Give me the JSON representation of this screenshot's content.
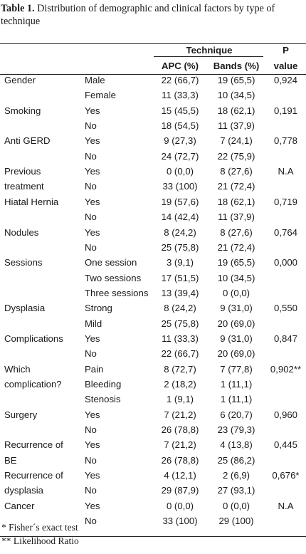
{
  "caption": {
    "label": "Table 1.",
    "text": " Distribution of demographic and clinical factors by type of technique"
  },
  "header": {
    "technique": "Technique",
    "apc": "APC (%)",
    "bands": "Bands (%)",
    "p_top": "P",
    "p_bottom": "value"
  },
  "rows": [
    {
      "factor": "Gender",
      "level": "Male",
      "apc": "22 (66,7)",
      "bands": "19 (65,5)",
      "p": "0,924"
    },
    {
      "factor": "",
      "level": "Female",
      "apc": "11 (33,3)",
      "bands": "10 (34,5)",
      "p": ""
    },
    {
      "factor": "Smoking",
      "level": "Yes",
      "apc": "15 (45,5)",
      "bands": "18 (62,1)",
      "p": "0,191"
    },
    {
      "factor": "",
      "level": "No",
      "apc": "18 (54,5)",
      "bands": "11 (37,9)",
      "p": ""
    },
    {
      "factor": "Anti GERD",
      "level": "Yes",
      "apc": "9 (27,3)",
      "bands": "7 (24,1)",
      "p": "0,778"
    },
    {
      "factor": "",
      "level": "No",
      "apc": "24 (72,7)",
      "bands": "22 (75,9)",
      "p": ""
    },
    {
      "factor": "Previous",
      "level": "Yes",
      "apc": "0 (0,0)",
      "bands": "8 (27,6)",
      "p": "N.A"
    },
    {
      "factor": "treatment",
      "level": "No",
      "apc": "33 (100)",
      "bands": "21 (72,4)",
      "p": ""
    },
    {
      "factor": "Hiatal Hernia",
      "level": "Yes",
      "apc": "19 (57,6)",
      "bands": "18 (62,1)",
      "p": "0,719"
    },
    {
      "factor": "",
      "level": "No",
      "apc": "14 (42,4)",
      "bands": "11 (37,9)",
      "p": ""
    },
    {
      "factor": "Nodules",
      "level": "Yes",
      "apc": "8 (24,2)",
      "bands": "8 (27,6)",
      "p": "0,764"
    },
    {
      "factor": "",
      "level": "No",
      "apc": "25 (75,8)",
      "bands": "21 (72,4)",
      "p": ""
    },
    {
      "factor": "Sessions",
      "level": "One session",
      "apc": "3 (9,1)",
      "bands": "19 (65,5)",
      "p": "0,000"
    },
    {
      "factor": "",
      "level": "Two sessions",
      "apc": "17 (51,5)",
      "bands": "10 (34,5)",
      "p": ""
    },
    {
      "factor": "",
      "level": "Three sessions",
      "apc": "13 (39,4)",
      "bands": "0 (0,0)",
      "p": ""
    },
    {
      "factor": "Dysplasia",
      "level": "Strong",
      "apc": "8 (24,2)",
      "bands": "9 (31,0)",
      "p": "0,550"
    },
    {
      "factor": "",
      "level": "Mild",
      "apc": "25 (75,8)",
      "bands": "20 (69,0)",
      "p": ""
    },
    {
      "factor": "Complications",
      "level": "Yes",
      "apc": "11 (33,3)",
      "bands": "9 (31,0)",
      "p": "0,847"
    },
    {
      "factor": "",
      "level": "No",
      "apc": "22 (66,7)",
      "bands": "20 (69,0)",
      "p": ""
    },
    {
      "factor": "Which",
      "level": "Pain",
      "apc": "8 (72,7)",
      "bands": "7 (77,8)",
      "p": "0,902**"
    },
    {
      "factor": "complication?",
      "level": "Bleeding",
      "apc": "2 (18,2)",
      "bands": "1 (11,1)",
      "p": ""
    },
    {
      "factor": "",
      "level": "Stenosis",
      "apc": "1 (9,1)",
      "bands": "1 (11,1)",
      "p": ""
    },
    {
      "factor": "Surgery",
      "level": "Yes",
      "apc": "7 (21,2)",
      "bands": "6 (20,7)",
      "p": "0,960"
    },
    {
      "factor": "",
      "level": "No",
      "apc": "26 (78,8)",
      "bands": "23 (79,3)",
      "p": ""
    },
    {
      "factor": "Recurrence of",
      "level": "Yes",
      "apc": "7 (21,2)",
      "bands": "4 (13,8)",
      "p": "0,445"
    },
    {
      "factor": "BE",
      "level": "No",
      "apc": "26 (78,8)",
      "bands": "25 (86,2)",
      "p": ""
    },
    {
      "factor": "Recurrence of",
      "level": "Yes",
      "apc": "4 (12,1)",
      "bands": "2 (6,9)",
      "p": "0,676*"
    },
    {
      "factor": "dysplasia",
      "level": "No",
      "apc": "29 (87,9)",
      "bands": "27 (93,1)",
      "p": ""
    },
    {
      "factor": "Cancer",
      "level": "Yes",
      "apc": "0 (0,0)",
      "bands": "0 (0,0)",
      "p": "N.A"
    },
    {
      "factor": "",
      "level": "No",
      "apc": "33 (100)",
      "bands": "29 (100)",
      "p": ""
    }
  ],
  "footnotes": [
    "* Fisher´s exact test",
    "** Likelihood Ratio"
  ]
}
